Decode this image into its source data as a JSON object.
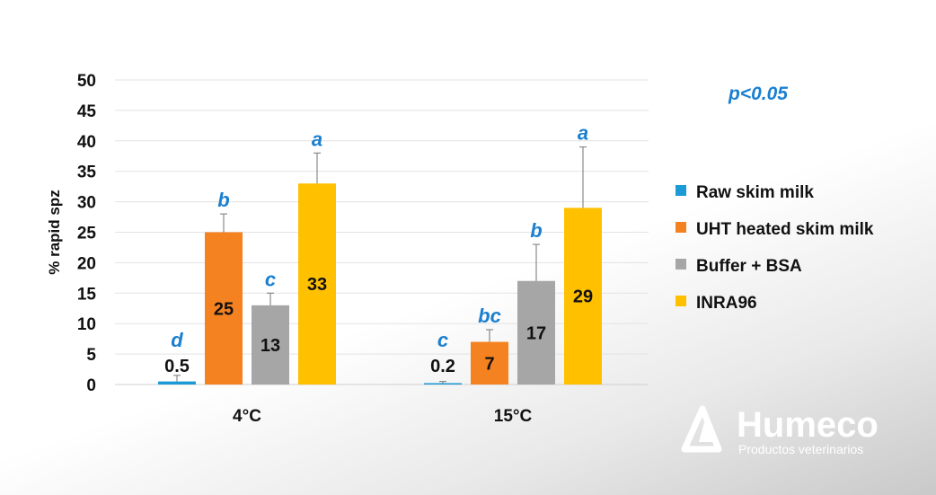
{
  "chart_data": {
    "type": "bar",
    "title": "",
    "xlabel": "",
    "ylabel": "% rapid spz",
    "ylim": [
      0,
      50
    ],
    "yticks": [
      0,
      5,
      10,
      15,
      20,
      25,
      30,
      35,
      40,
      45,
      50
    ],
    "categories": [
      "4°C",
      "15°C"
    ],
    "annotation": "p<0.05",
    "grid": true,
    "legend_position": "right",
    "series": [
      {
        "name": "Raw skim milk",
        "color": "#1b9ad6",
        "values": [
          0.5,
          0.2
        ],
        "error": [
          1.0,
          0.3
        ],
        "labels": [
          "0.5",
          "0.2"
        ],
        "significance": [
          "d",
          "c"
        ]
      },
      {
        "name": "UHT heated skim milk",
        "color": "#f58220",
        "values": [
          25,
          7
        ],
        "error": [
          3,
          2
        ],
        "labels": [
          "25",
          "7"
        ],
        "significance": [
          "b",
          "bc"
        ]
      },
      {
        "name": "Buffer + BSA",
        "color": "#a6a6a6",
        "values": [
          13,
          17
        ],
        "error": [
          2,
          6
        ],
        "labels": [
          "13",
          "17"
        ],
        "significance": [
          "c",
          "b"
        ]
      },
      {
        "name": "INRA96",
        "color": "#ffc000",
        "values": [
          33,
          29
        ],
        "error": [
          5,
          10
        ],
        "labels": [
          "33",
          "29"
        ],
        "significance": [
          "a",
          "a"
        ]
      }
    ]
  },
  "brand": {
    "name": "Humeco",
    "tagline": "Productos veterinarios",
    "logo_icon": "mountain-drop-icon"
  }
}
